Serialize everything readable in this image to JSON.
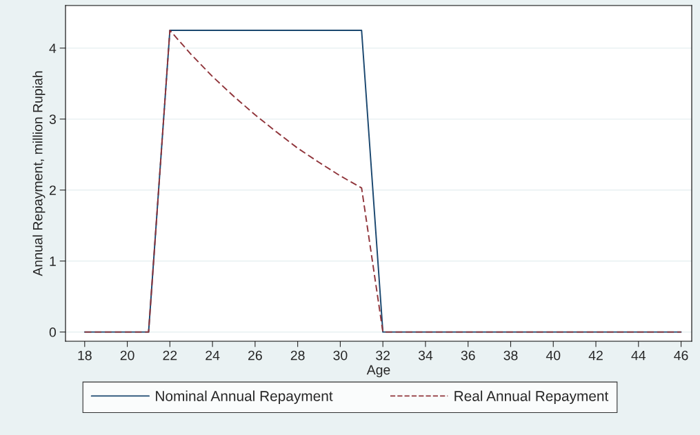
{
  "chart_data": {
    "type": "line",
    "xlabel": "Age",
    "ylabel": "Annual Repayment, million Rupiah",
    "xlim": [
      17.1,
      46.5
    ],
    "ylim": [
      -0.13,
      4.6
    ],
    "xticks": [
      18,
      20,
      22,
      24,
      26,
      28,
      30,
      32,
      34,
      36,
      38,
      40,
      42,
      44,
      46
    ],
    "yticks": [
      0,
      1,
      2,
      3,
      4
    ],
    "grid": "y",
    "legend": "bottom",
    "marker": "none",
    "x": [
      18,
      19,
      20,
      21,
      22,
      23,
      24,
      25,
      26,
      27,
      28,
      29,
      30,
      31,
      32,
      33,
      34,
      35,
      36,
      37,
      38,
      39,
      40,
      41,
      42,
      43,
      44,
      45,
      46
    ],
    "series": [
      {
        "name": "Nominal Annual Repayment",
        "color": "#1a476f",
        "line_style": "solid",
        "values": [
          0,
          0,
          0,
          0,
          4.25,
          4.25,
          4.25,
          4.25,
          4.25,
          4.25,
          4.25,
          4.25,
          4.25,
          4.25,
          0,
          0,
          0,
          0,
          0,
          0,
          0,
          0,
          0,
          0,
          0,
          0,
          0,
          0,
          0
        ]
      },
      {
        "name": "Real Annual Repayment",
        "color": "#90353b",
        "line_style": "dashed",
        "values": [
          0,
          0,
          0,
          0,
          4.25,
          3.91,
          3.6,
          3.32,
          3.06,
          2.82,
          2.59,
          2.39,
          2.2,
          2.03,
          0,
          0,
          0,
          0,
          0,
          0,
          0,
          0,
          0,
          0,
          0,
          0,
          0,
          0,
          0
        ]
      }
    ]
  }
}
